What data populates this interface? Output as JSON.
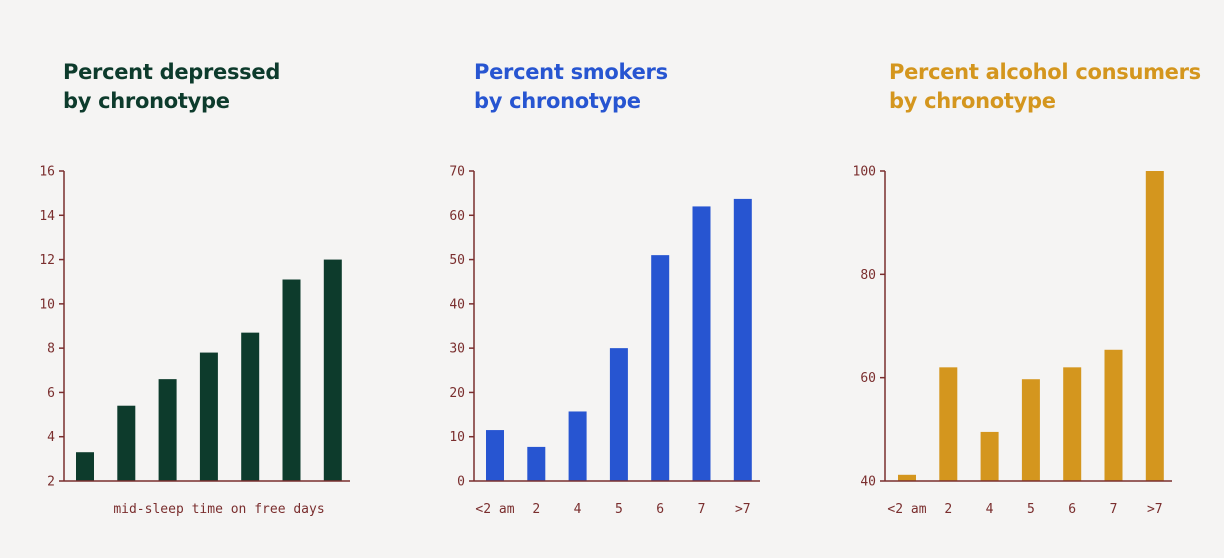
{
  "chart_data": [
    {
      "type": "bar",
      "title": [
        "Percent depressed",
        "by chronotype"
      ],
      "xlabel": "mid-sleep time on free days",
      "ylabel": "",
      "categories": [
        "",
        "",
        "",
        "",
        "",
        "",
        ""
      ],
      "values": [
        3.3,
        5.4,
        6.6,
        7.8,
        8.7,
        11.1,
        12.0
      ],
      "ylim": [
        2,
        16
      ],
      "yticks": [
        "2",
        "4",
        "6",
        "8",
        "10",
        "12",
        "14",
        "16"
      ],
      "color": "#0d3b2c",
      "grid": false
    },
    {
      "type": "bar",
      "title": [
        "Percent smokers",
        "by chronotype"
      ],
      "xlabel": "",
      "ylabel": "",
      "categories": [
        "<2 am",
        "2",
        "4",
        "5",
        "6",
        "7",
        ">7"
      ],
      "values": [
        11.5,
        7.7,
        15.7,
        30.0,
        51.0,
        62.0,
        63.7
      ],
      "ylim": [
        0,
        70
      ],
      "yticks": [
        "0",
        "10",
        "20",
        "30",
        "40",
        "50",
        "60",
        "70"
      ],
      "color": "#2755d1",
      "grid": false
    },
    {
      "type": "bar",
      "title": [
        "Percent alcohol consumers",
        "by chronotype"
      ],
      "xlabel": "",
      "ylabel": "",
      "categories": [
        "<2 am",
        "2",
        "4",
        "5",
        "6",
        "7",
        ">7"
      ],
      "values": [
        41.2,
        62.0,
        49.5,
        59.7,
        62.0,
        65.4,
        100.0
      ],
      "ylim": [
        40,
        100
      ],
      "yticks": [
        "40",
        "60",
        "80",
        "100"
      ],
      "color": "#d4961e",
      "grid": false
    }
  ],
  "colors": {
    "axis": "#7a2e2e",
    "background": "#f5f4f3"
  }
}
